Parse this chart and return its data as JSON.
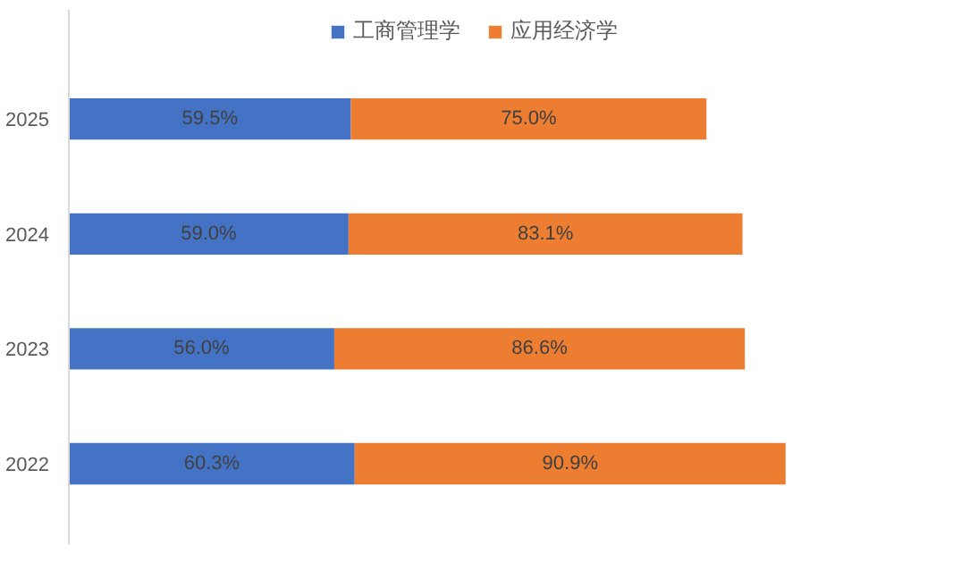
{
  "chart_data": {
    "type": "bar",
    "orientation": "horizontal",
    "stacked": true,
    "data_labels": true,
    "legend": "top",
    "grid": false,
    "categories": [
      "2025",
      "2024",
      "2023",
      "2022"
    ],
    "series": [
      {
        "name": "工商管理学",
        "color": "#4472c4",
        "values": [
          59.5,
          59.0,
          56.0,
          60.3
        ],
        "value_labels": [
          "59.5%",
          "59.0%",
          "56.0%",
          "60.3%"
        ]
      },
      {
        "name": "应用经济学",
        "color": "#ed7d31",
        "values": [
          75.0,
          83.1,
          86.6,
          90.9
        ],
        "value_labels": [
          "75.0%",
          "83.1%",
          "86.6%",
          "90.9%"
        ]
      }
    ]
  }
}
